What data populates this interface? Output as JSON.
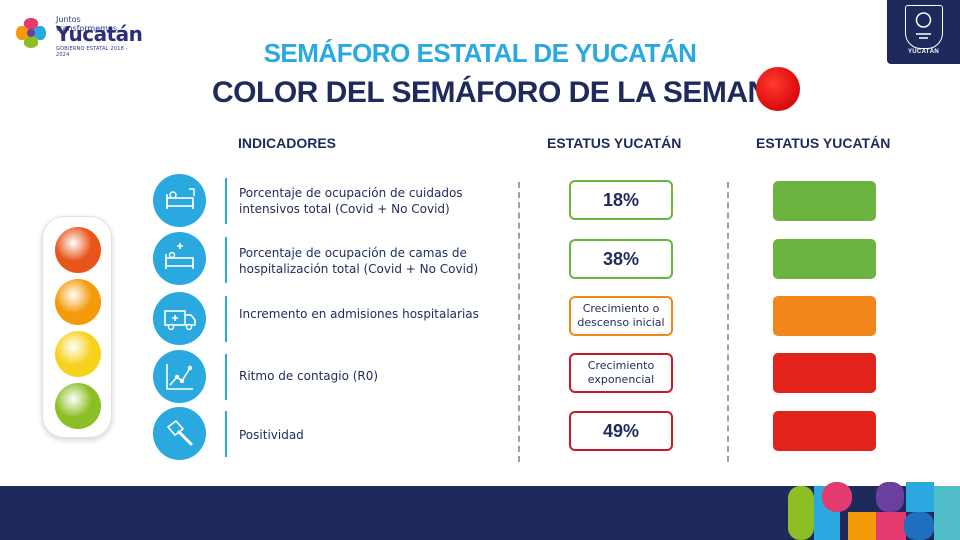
{
  "logo": {
    "small_text": "Juntos transformemos",
    "big_text": "Yucatán",
    "tiny_text": "GOBIERNO ESTATAL 2018 - 2024"
  },
  "seal": {
    "label": "YUCATÁN"
  },
  "title": {
    "line1": "SEMÁFORO ESTATAL DE YUCATÁN",
    "line2": "COLOR DEL SEMÁFORO DE LA SEMANA",
    "week_color": "#e01010"
  },
  "headers": {
    "indicators": "INDICADORES",
    "status1": "ESTATUS YUCATÁN",
    "status2": "ESTATUS YUCATÁN"
  },
  "traffic_light": {
    "colors": [
      "#e8551c",
      "#f59a08",
      "#f7d21c",
      "#8cbf26"
    ]
  },
  "indicators": [
    {
      "icon": "icu-bed-icon",
      "text": "Porcentaje de ocupación de cuidados intensivos total (Covid + No Covid)",
      "status": "18%",
      "status_border": "#6cb33f",
      "color": "#6cb33f"
    },
    {
      "icon": "hospital-bed-icon",
      "text": "Porcentaje de ocupación de camas de hospitalización total (Covid + No Covid)",
      "status": "38%",
      "status_border": "#6cb33f",
      "color": "#6cb33f"
    },
    {
      "icon": "ambulance-icon",
      "text": "Incremento en admisiones hospitalarias",
      "status": "Crecimiento o descenso inicial",
      "status_border": "#f0861c",
      "color": "#f0861c"
    },
    {
      "icon": "contagion-chart-icon",
      "text": "Ritmo de contagio (R0)",
      "status": "Crecimiento exponencial",
      "status_border": "#c8192b",
      "color": "#e2231a"
    },
    {
      "icon": "test-swab-icon",
      "text": "Positividad",
      "status": "49%",
      "status_border": "#c8192b",
      "color": "#e2231a"
    }
  ]
}
